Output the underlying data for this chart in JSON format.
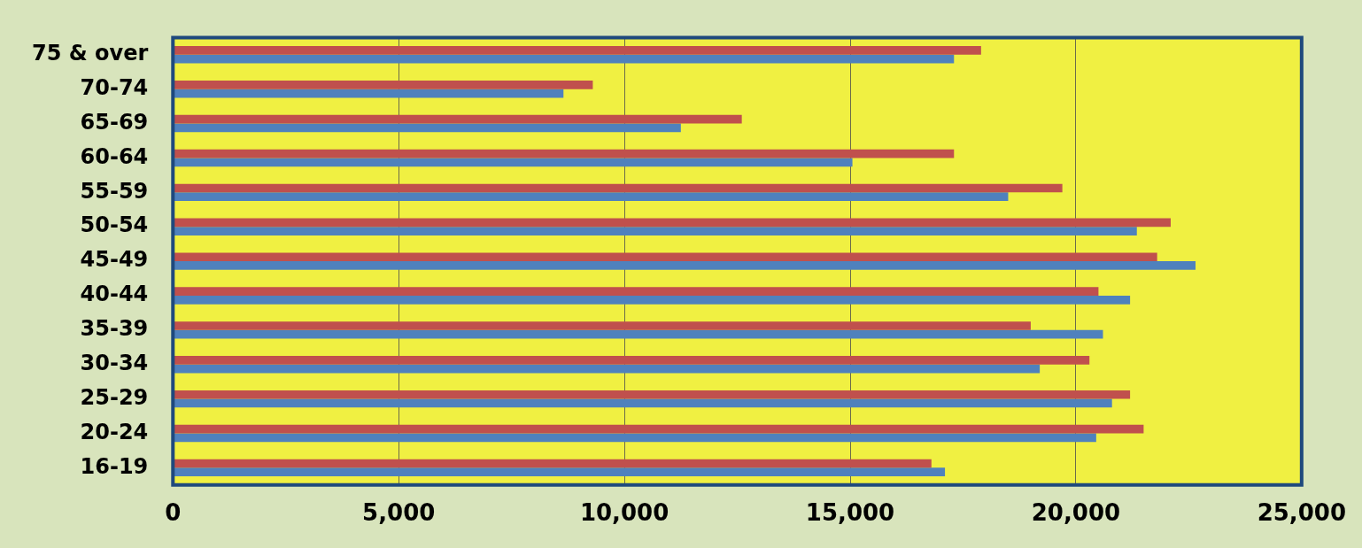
{
  "chart_data": {
    "type": "bar",
    "orientation": "horizontal",
    "categories": [
      "75 & over",
      "70-74",
      "65-69",
      "60-64",
      "55-59",
      "50-54",
      "45-49",
      "40-44",
      "35-39",
      "30-34",
      "25-29",
      "20-24",
      "16-19"
    ],
    "series": [
      {
        "color": "#c0504d",
        "values": [
          17900,
          9300,
          12600,
          17300,
          19700,
          22100,
          21800,
          20500,
          19000,
          20300,
          21200,
          21500,
          16800
        ]
      },
      {
        "color": "#4f81bd",
        "values": [
          17300,
          8650,
          11250,
          15050,
          18500,
          21350,
          22650,
          21200,
          20600,
          19200,
          20800,
          20450,
          17100
        ]
      }
    ],
    "xlim": [
      0,
      25000
    ],
    "xticks": [
      0,
      {
        "value": 5000,
        "label": "5,000"
      },
      {
        "value": 10000,
        "label": "10,000"
      },
      {
        "value": 15000,
        "label": "15,000"
      },
      {
        "value": 20000,
        "label": "20,000"
      },
      {
        "value": 25000,
        "label": "25,000"
      }
    ],
    "grid": "x",
    "legend": false
  }
}
